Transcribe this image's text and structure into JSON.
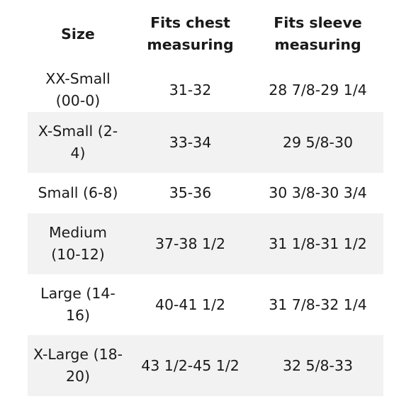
{
  "table": {
    "headers": [
      "Size",
      "Fits chest measuring",
      "Fits sleeve measuring"
    ],
    "rows": [
      {
        "size": "XX-Small (00-0)",
        "chest": "31-32",
        "sleeve": "28 7/8-29 1/4"
      },
      {
        "size": "X-Small (2-4)",
        "chest": "33-34",
        "sleeve": "29 5/8-30"
      },
      {
        "size": "Small (6-8)",
        "chest": "35-36",
        "sleeve": "30 3/8-30 3/4"
      },
      {
        "size": "Medium (10-12)",
        "chest": "37-38 1/2",
        "sleeve": "31 1/8-31 1/2"
      },
      {
        "size": "Large (14-16)",
        "chest": "40-41 1/2",
        "sleeve": "31 7/8-32 1/4"
      },
      {
        "size": "X-Large (18-20)",
        "chest": "43 1/2-45 1/2",
        "sleeve": "32 5/8-33"
      }
    ]
  },
  "colors": {
    "text": "#1a1a1a",
    "row_shade": "#f2f2f2",
    "background": "#ffffff"
  }
}
